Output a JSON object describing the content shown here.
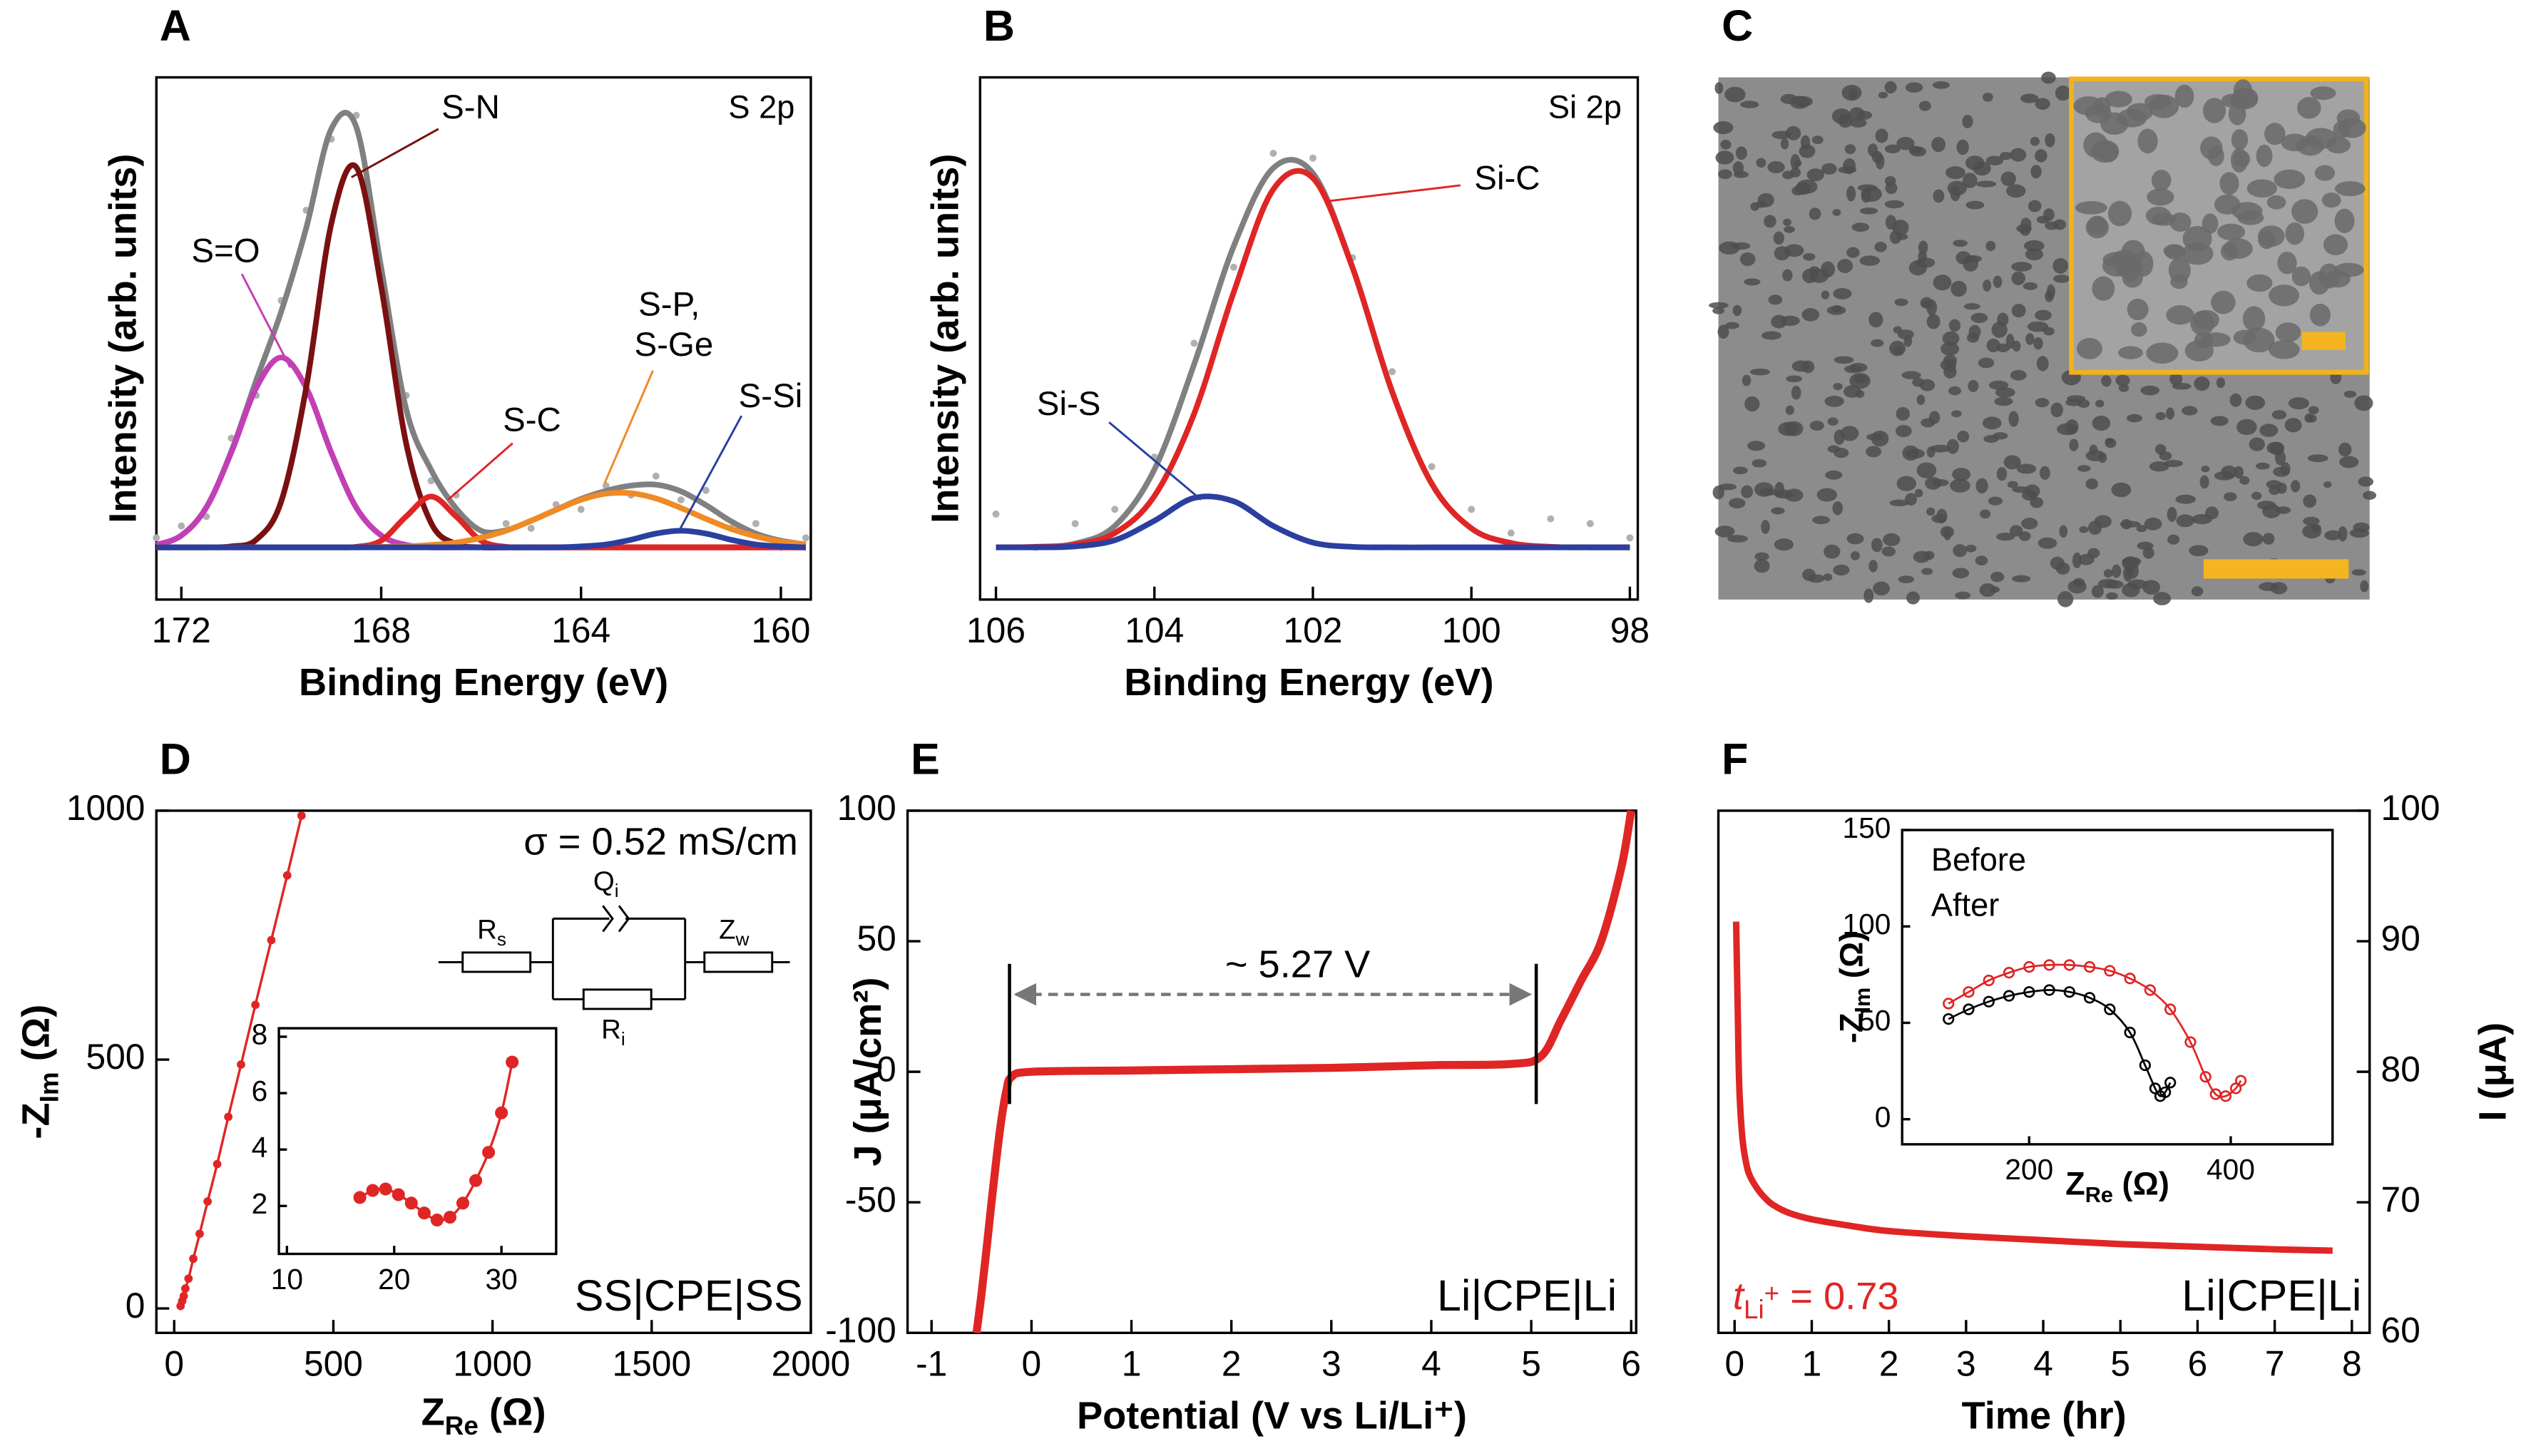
{
  "chart_data": [
    {
      "type": "line",
      "panel": "A",
      "title": "S 2p",
      "xlabel": "Binding Energy (eV)",
      "ylabel": "Intensity (arb. units)",
      "xlim": [
        172.5,
        159.4
      ],
      "xticks": [
        172,
        168,
        164,
        160
      ],
      "ylim": [
        -10,
        100
      ],
      "x": [
        172.5,
        172,
        171.5,
        171,
        170.5,
        170,
        169.5,
        169,
        168.5,
        168,
        167.5,
        167,
        166.5,
        166,
        165.5,
        165,
        164.5,
        164,
        163.5,
        163,
        162.5,
        162,
        161.5,
        161,
        160.5,
        160,
        159.5
      ],
      "series": [
        {
          "color": "#b0b0b0",
          "marker": "dots",
          "values": [
            3,
            5.5,
            7.5,
            24,
            33,
            53,
            72,
            87,
            92,
            57,
            33,
            15,
            12,
            3,
            6,
            5,
            10,
            9,
            14,
            12,
            16,
            11,
            13,
            5,
            6,
            1,
            3
          ]
        },
        {
          "color": "#808080",
          "values": [
            1.5,
            3.5,
            9.4,
            21.2,
            36.2,
            50.7,
            68.3,
            89.1,
            89.6,
            59.9,
            30.1,
            17.3,
            9.2,
            4.5,
            4.6,
            6.6,
            8.9,
            11.2,
            12.9,
            14,
            14.2,
            12.8,
            9.9,
            6.5,
            3.9,
            2.4,
            1.6
          ]
        },
        {
          "name": "S=O",
          "color": "#c23fb5",
          "values": [
            1.5,
            3.5,
            9.4,
            21,
            34.6,
            41,
            34.6,
            21,
            9.4,
            3.5,
            1.5,
            1,
            1,
            1,
            1,
            1,
            1,
            1,
            1,
            1,
            1,
            1,
            1,
            1,
            1,
            1,
            1
          ]
        },
        {
          "name": "S-N",
          "color": "#7a1010",
          "values": [
            1,
            1,
            1,
            1.2,
            2.6,
            10.7,
            34.7,
            69.1,
            81.1,
            55.9,
            22.9,
            6.1,
            1.7,
            1,
            1,
            1,
            1,
            1,
            1,
            1,
            1,
            1,
            1,
            1,
            1,
            1,
            1
          ]
        },
        {
          "name": "S-C",
          "color": "#e02525",
          "values": [
            1,
            1,
            1,
            1,
            1,
            1,
            1,
            1,
            1.1,
            2.4,
            7.5,
            11.7,
            7.5,
            2.4,
            1.1,
            1,
            1,
            1,
            1,
            1,
            1,
            1,
            1,
            1,
            1,
            1,
            1
          ]
        },
        {
          "name": "S-P, S-Ge",
          "color": "#f08a24",
          "values": [
            1,
            1,
            1,
            1,
            1,
            1,
            1,
            1,
            1,
            1.1,
            1.2,
            1.5,
            2,
            3,
            4.5,
            6.6,
            8.9,
            11,
            12.3,
            12.4,
            11.3,
            9.3,
            7,
            4.9,
            3.3,
            2.2,
            1.6
          ]
        },
        {
          "name": "S-Si",
          "color": "#2a3fa0",
          "values": [
            1,
            1,
            1,
            1,
            1,
            1,
            1,
            1,
            1,
            1,
            1,
            1,
            1,
            1,
            1,
            1,
            1,
            1.2,
            1.6,
            2.6,
            3.9,
            4.5,
            3.9,
            2.6,
            1.6,
            1.2,
            1
          ]
        }
      ]
    },
    {
      "type": "line",
      "panel": "B",
      "title": "Si 2p",
      "xlabel": "Binding Energy (eV)",
      "ylabel": "Intensity (arb. units)",
      "xlim": [
        106.2,
        97.9
      ],
      "xticks": [
        106,
        104,
        102,
        100,
        98
      ],
      "ylim": [
        -10,
        100
      ],
      "x": [
        106,
        105.5,
        105,
        104.5,
        104,
        103.5,
        103,
        102.5,
        102,
        101.5,
        101,
        100.5,
        100,
        99.5,
        99,
        98.5,
        98
      ],
      "series": [
        {
          "color": "#b0b0b0",
          "marker": "dots",
          "values": [
            8,
            1,
            6,
            9,
            20,
            44,
            60,
            84,
            83,
            62,
            38,
            18,
            9,
            4,
            7,
            6,
            3
          ]
        },
        {
          "color": "#808080",
          "values": [
            1,
            1.1,
            1.8,
            5.5,
            17.4,
            39.5,
            64.4,
            80.9,
            79.8,
            60,
            33.8,
            14.4,
            5,
            1.9,
            1.1,
            1,
            1
          ]
        },
        {
          "name": "Si-C",
          "color": "#e02525",
          "values": [
            1,
            1.1,
            1.6,
            4,
            11.8,
            29.1,
            54.7,
            76.4,
            78.8,
            59.9,
            33.8,
            14.4,
            5,
            1.9,
            1.1,
            1,
            1
          ]
        },
        {
          "name": "Si-S",
          "color": "#2a3fa0",
          "values": [
            1,
            1,
            1.2,
            2.5,
            6.6,
            11.4,
            10.7,
            5.5,
            2,
            1.1,
            1,
            1,
            1,
            1,
            1,
            1,
            1
          ]
        }
      ]
    },
    {
      "type": "image",
      "panel": "C"
    },
    {
      "type": "line",
      "panel": "D",
      "xlabel": {
        "main": "Z",
        "sub": "Re",
        "rest": " (Ω)"
      },
      "ylabel": {
        "main": "-Z",
        "sub": "Im",
        "rest": " (Ω)"
      },
      "xlim": [
        -56,
        2000
      ],
      "xticks": [
        0,
        500,
        1000,
        1500,
        2000
      ],
      "ylim": [
        -49,
        1000
      ],
      "yticks": [
        0,
        500,
        1000
      ],
      "x": [
        20,
        25,
        30,
        35,
        45,
        60,
        80,
        105,
        135,
        170,
        210,
        255,
        305,
        355,
        400
      ],
      "series": [
        {
          "color": "#e02525",
          "marker": "filled",
          "values": [
            5,
            15,
            25,
            40,
            60,
            100,
            150,
            215,
            290,
            385,
            490,
            610,
            740,
            870,
            990
          ]
        }
      ],
      "annotations": [
        "σ = 0.52 mS/cm",
        "SS|CPE|SS"
      ],
      "circuit": [
        {
          "main": "R",
          "sub": "s"
        },
        {
          "main": "Q",
          "sub": "i"
        },
        {
          "main": "Z",
          "sub": "w"
        },
        {
          "main": "R",
          "sub": "i"
        }
      ],
      "inset": {
        "type": "line",
        "xlim": [
          9.25,
          35.1
        ],
        "xticks": [
          10,
          20,
          30
        ],
        "ylim": [
          0.3,
          8.3
        ],
        "yticks": [
          2,
          4,
          6,
          8
        ],
        "x": [
          16.8,
          18,
          19.2,
          20.4,
          21.6,
          22.8,
          24,
          25.2,
          26.4,
          27.6,
          28.8,
          30,
          31
        ],
        "series": [
          {
            "color": "#e02525",
            "marker": "filled",
            "values": [
              2.3,
              2.55,
              2.6,
              2.4,
              2.1,
              1.75,
              1.5,
              1.6,
              2.1,
              2.9,
              3.9,
              5.3,
              7.1
            ]
          }
        ]
      }
    },
    {
      "type": "line",
      "panel": "E",
      "xlabel": "Potential (V vs Li/Li⁺)",
      "ylabel": "J (μA/cm²)",
      "xlim": [
        -1.24,
        6.05
      ],
      "xticks": [
        -1,
        0,
        1,
        2,
        3,
        4,
        5,
        6
      ],
      "ylim": [
        -100,
        100
      ],
      "yticks": [
        -100,
        -50,
        0,
        50,
        100
      ],
      "x": [
        -0.55,
        -0.5,
        -0.45,
        -0.4,
        -0.35,
        -0.3,
        -0.25,
        -0.2,
        0,
        1,
        2,
        3,
        4,
        4.8,
        5.1,
        5.3,
        5.5,
        5.7,
        5.9,
        6
      ],
      "series": [
        {
          "color": "#e02525",
          "values": [
            -100,
            -85,
            -68,
            -50,
            -33,
            -18,
            -7,
            -2,
            0,
            0.5,
            1,
            1.5,
            2.5,
            3,
            6,
            20,
            35,
            50,
            78,
            100
          ]
        }
      ],
      "window": [
        -0.22,
        5.05
      ],
      "annotations": [
        "~ 5.27 V",
        "Li|CPE|Li"
      ]
    },
    {
      "type": "line",
      "panel": "F",
      "xlabel": "Time (hr)",
      "ylabel": "I (μA)",
      "yaxis": "right",
      "xlim": [
        -0.21,
        8.23
      ],
      "xticks": [
        0,
        1,
        2,
        3,
        4,
        5,
        6,
        7,
        8
      ],
      "ylim": [
        60,
        100
      ],
      "yticks": [
        60,
        70,
        80,
        90,
        100
      ],
      "x": [
        0.02,
        0.04,
        0.06,
        0.1,
        0.15,
        0.2,
        0.3,
        0.4,
        0.5,
        0.7,
        1,
        1.5,
        2,
        3,
        4,
        5,
        6,
        7,
        7.75
      ],
      "series": [
        {
          "color": "#e02525",
          "values": [
            91.5,
            85,
            79,
            75,
            73,
            72,
            71,
            70.3,
            69.8,
            69.2,
            68.7,
            68.2,
            67.8,
            67.4,
            67.1,
            66.8,
            66.6,
            66.4,
            66.3
          ]
        }
      ],
      "annotations": [
        {
          "main": "t",
          "sub": "Li",
          "sup": "+",
          "rest": " = 0.73"
        },
        "Li|CPE|Li"
      ],
      "inset": {
        "type": "line",
        "xlabel": {
          "main": "Z",
          "sub": "Re",
          "rest": " (Ω)"
        },
        "ylabel": {
          "main": "-Z",
          "sub": "Im",
          "rest": " (Ω)"
        },
        "xlim": [
          74,
          501
        ],
        "xticks": [
          200,
          400
        ],
        "ylim": [
          -13,
          150
        ],
        "yticks": [
          0,
          50,
          100,
          150
        ],
        "legend": "upper left",
        "series": [
          {
            "name": "Before",
            "color": "#000000",
            "marker": "open",
            "x": [
              120,
              140,
              160,
              180,
              200,
              220,
              240,
              260,
              280,
              300,
              315,
              325,
              330,
              335,
              340
            ],
            "values": [
              52,
              57,
              61,
              64,
              66,
              67,
              66,
              63,
              57,
              45,
              28,
              16,
              12,
              14,
              19
            ]
          },
          {
            "name": "After",
            "color": "#e02525",
            "marker": "open",
            "x": [
              120,
              140,
              160,
              180,
              200,
              220,
              240,
              260,
              280,
              300,
              320,
              340,
              360,
              375,
              385,
              395,
              405,
              410
            ],
            "values": [
              60,
              66,
              72,
              76,
              79,
              80,
              80,
              79,
              77,
              73,
              67,
              57,
              40,
              22,
              13,
              12,
              16,
              20
            ]
          }
        ]
      }
    }
  ]
}
